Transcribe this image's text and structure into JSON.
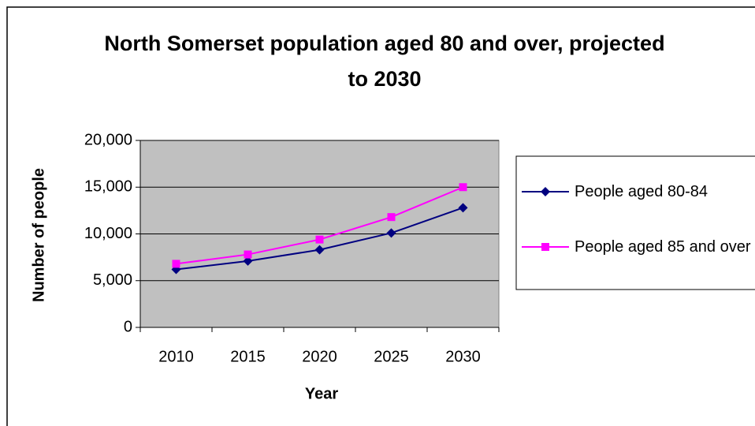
{
  "chart_data": {
    "type": "line",
    "title": "North Somerset population aged 80 and over, projected to 2030",
    "x_label": "Year",
    "y_label": "Number of people",
    "categories": [
      "2010",
      "2015",
      "2020",
      "2025",
      "2030"
    ],
    "series": [
      {
        "name": "People aged 80-84",
        "color": "#000080",
        "marker": "diamond",
        "values": [
          6200,
          7100,
          8300,
          10100,
          12800
        ]
      },
      {
        "name": "People aged 85 and over",
        "color": "#ff00ff",
        "marker": "square",
        "values": [
          6800,
          7800,
          9400,
          11800,
          15000
        ]
      }
    ],
    "ylim": [
      0,
      20000
    ],
    "yticks": [
      0,
      {
        "value": 5000,
        "label": "5,000"
      },
      {
        "value": 10000,
        "label": "10,000"
      },
      {
        "value": 15000,
        "label": "15,000"
      },
      {
        "value": 20000,
        "label": "20,000"
      }
    ],
    "grid": true,
    "plot_background": "#c0c0c0",
    "legend": "right"
  }
}
